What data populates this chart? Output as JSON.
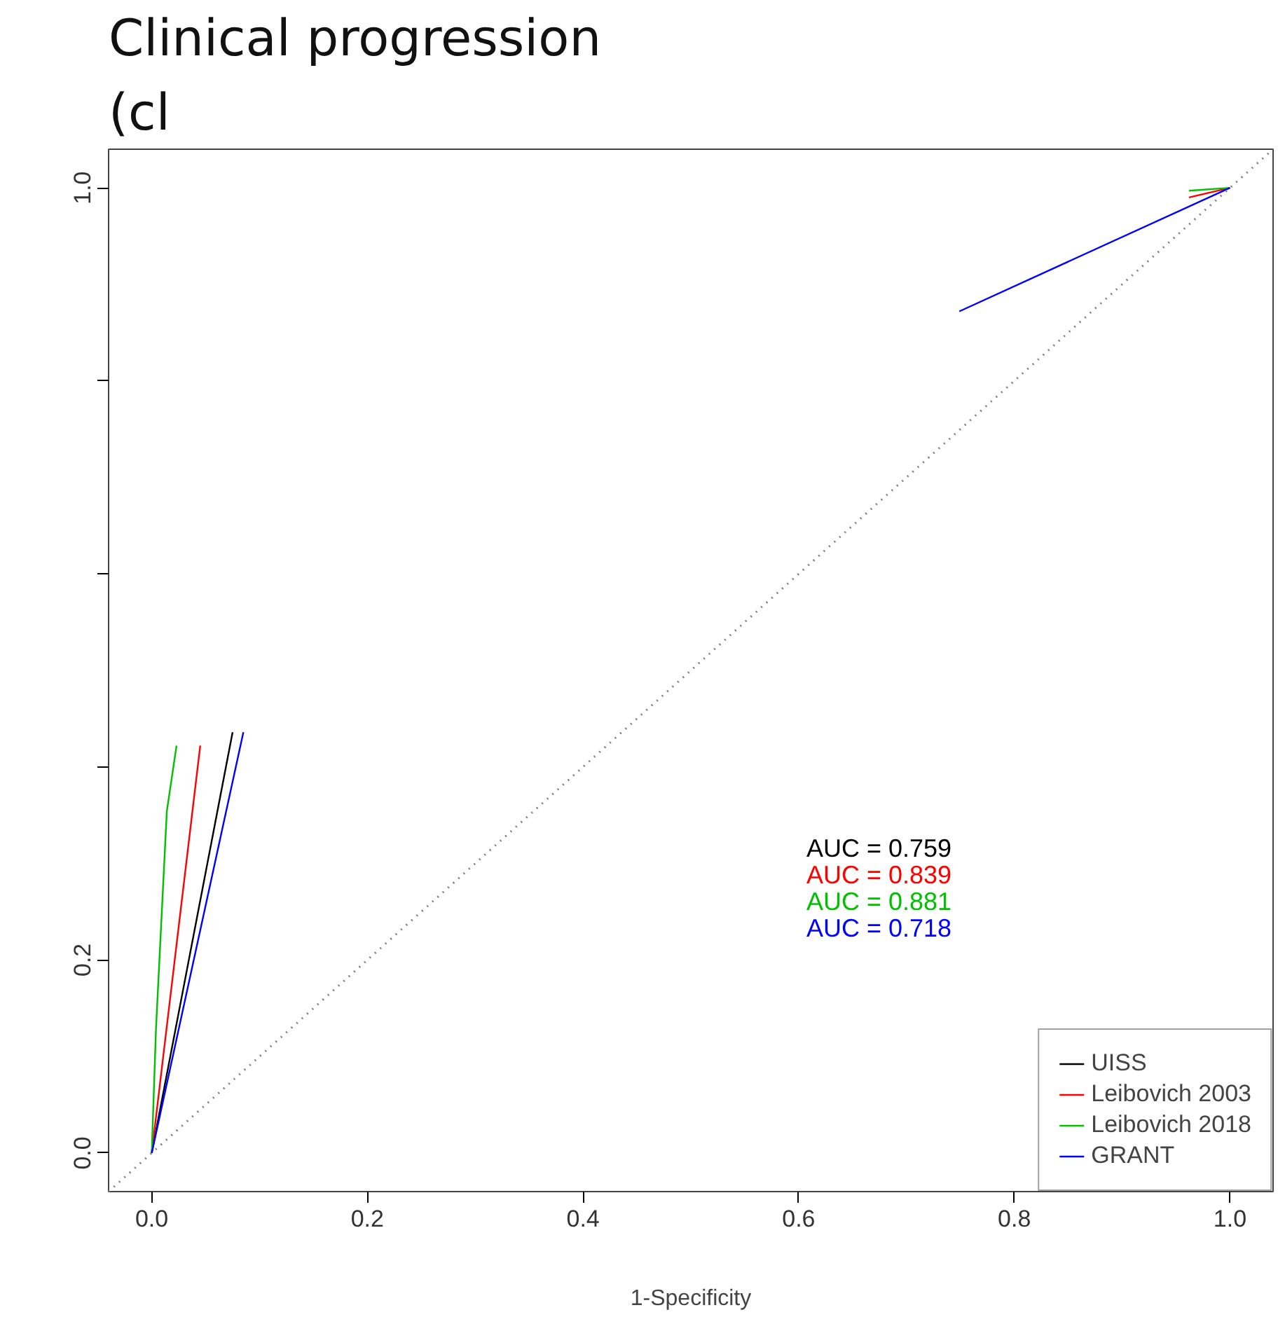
{
  "chart_data": {
    "type": "line",
    "title": "Clinical progression",
    "subtitle": "(cl",
    "xlabel": "1-Specificity",
    "annotations": [
      "AUC =  0.759",
      "AUC =  0.839",
      "AUC =  0.881",
      "AUC =  0.718"
    ],
    "xlim": [
      -0.04,
      1.04
    ],
    "ylim": [
      -0.04,
      1.04
    ],
    "xticks": [
      {
        "value": 0,
        "label": "0.0"
      },
      {
        "value": 0.2,
        "label": "0.2"
      },
      {
        "value": 0.4,
        "label": "0.4"
      },
      {
        "value": 0.6,
        "label": "0.6"
      },
      {
        "value": 0.8,
        "label": "0.8"
      },
      {
        "value": 1,
        "label": "1.0"
      }
    ],
    "yticks": [
      {
        "value": 0,
        "label": "0.0"
      },
      {
        "value": 0.2,
        "label": "0.2"
      },
      {
        "value": 0.4,
        "label": null
      },
      {
        "value": 0.6,
        "label": null
      },
      {
        "value": 0.8,
        "label": null
      },
      {
        "value": 1,
        "label": "1.0"
      }
    ],
    "legend": "bottom right",
    "series": [
      {
        "name": "UISS",
        "color": "#000000",
        "x": [
          0,
          0.075
        ],
        "values": [
          0,
          0.436
        ]
      },
      {
        "name": "Leibovich 2003",
        "color": "#ff0000",
        "x": [
          0,
          0.045,
          0.5,
          0.962,
          1
        ],
        "values": [
          0,
          0.422,
          null,
          0.99,
          1
        ]
      },
      {
        "name": "Leibovich 2018",
        "color": "#00c000",
        "x": [
          0,
          0.004,
          0.014,
          0.023,
          0.5,
          0.962,
          1
        ],
        "values": [
          0,
          0.13,
          0.354,
          0.422,
          null,
          0.997,
          1
        ]
      },
      {
        "name": "GRANT",
        "color": "#0000ff",
        "x": [
          0,
          0.085,
          0.5,
          0.749,
          1
        ],
        "values": [
          0,
          0.436,
          null,
          0.872,
          1
        ]
      },
      {
        "type": "line",
        "color": "#808080",
        "line_style": "dotted",
        "x": [
          -0.04,
          1.04
        ],
        "values": [
          -0.04,
          1.04
        ]
      }
    ]
  }
}
